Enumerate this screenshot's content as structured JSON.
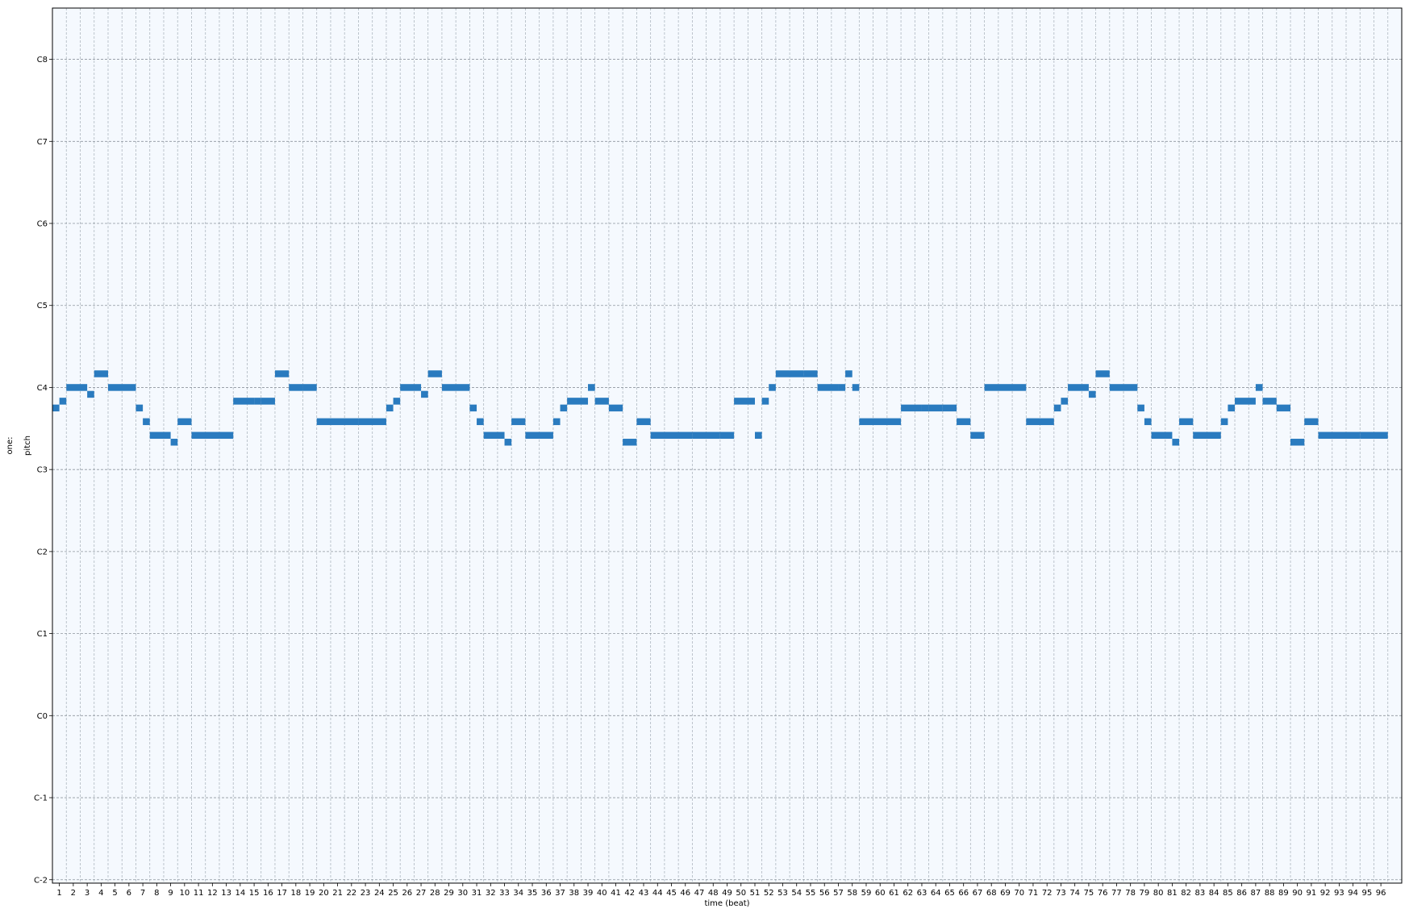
{
  "chart_data": {
    "type": "pianoroll",
    "title": "",
    "xlabel": "time (beat)",
    "ylabel": "pitch",
    "track_label": "one:",
    "xlim": [
      0.5,
      97.5
    ],
    "ylim": [
      -0.5,
      127.5
    ],
    "beat_ticks": [
      1,
      2,
      3,
      4,
      5,
      6,
      7,
      8,
      9,
      10,
      11,
      12,
      13,
      14,
      15,
      16,
      17,
      18,
      19,
      20,
      21,
      22,
      23,
      24,
      25,
      26,
      27,
      28,
      29,
      30,
      31,
      32,
      33,
      34,
      35,
      36,
      37,
      38,
      39,
      40,
      41,
      42,
      43,
      44,
      45,
      46,
      47,
      48,
      49,
      50,
      51,
      52,
      53,
      54,
      55,
      56,
      57,
      58,
      59,
      60,
      61,
      62,
      63,
      64,
      65,
      66,
      67,
      68,
      69,
      70,
      71,
      72,
      73,
      74,
      75,
      76,
      77,
      78,
      79,
      80,
      81,
      82,
      83,
      84,
      85,
      86,
      87,
      88,
      89,
      90,
      91,
      92,
      93,
      94,
      95,
      96
    ],
    "pitch_ticks": [
      {
        "label": "C-2",
        "pitch": 0
      },
      {
        "label": "C-1",
        "pitch": 12
      },
      {
        "label": "C0",
        "pitch": 24
      },
      {
        "label": "C1",
        "pitch": 36
      },
      {
        "label": "C2",
        "pitch": 48
      },
      {
        "label": "C3",
        "pitch": 60
      },
      {
        "label": "C4",
        "pitch": 72
      },
      {
        "label": "C5",
        "pitch": 84
      },
      {
        "label": "C6",
        "pitch": 96
      },
      {
        "label": "C7",
        "pitch": 108
      },
      {
        "label": "C8",
        "pitch": 120
      }
    ],
    "grid": true,
    "notes": [
      {
        "start": 0.5,
        "end": 1.0,
        "pitch": 69
      },
      {
        "start": 1.0,
        "end": 1.5,
        "pitch": 70
      },
      {
        "start": 1.5,
        "end": 3.0,
        "pitch": 72
      },
      {
        "start": 3.0,
        "end": 3.5,
        "pitch": 71
      },
      {
        "start": 3.5,
        "end": 4.5,
        "pitch": 74
      },
      {
        "start": 4.5,
        "end": 6.5,
        "pitch": 72
      },
      {
        "start": 6.5,
        "end": 7.0,
        "pitch": 69
      },
      {
        "start": 7.0,
        "end": 7.5,
        "pitch": 67
      },
      {
        "start": 7.5,
        "end": 9.0,
        "pitch": 65
      },
      {
        "start": 9.0,
        "end": 9.5,
        "pitch": 64
      },
      {
        "start": 9.5,
        "end": 10.5,
        "pitch": 67
      },
      {
        "start": 10.5,
        "end": 13.5,
        "pitch": 65
      },
      {
        "start": 13.5,
        "end": 15.0,
        "pitch": 70
      },
      {
        "start": 15.0,
        "end": 15.5,
        "pitch": 70
      },
      {
        "start": 15.5,
        "end": 16.5,
        "pitch": 70
      },
      {
        "start": 16.5,
        "end": 17.5,
        "pitch": 74
      },
      {
        "start": 17.5,
        "end": 18.5,
        "pitch": 72
      },
      {
        "start": 18.5,
        "end": 19.5,
        "pitch": 72
      },
      {
        "start": 19.5,
        "end": 22.5,
        "pitch": 67
      },
      {
        "start": 22.5,
        "end": 24.5,
        "pitch": 67
      },
      {
        "start": 24.5,
        "end": 25.0,
        "pitch": 69
      },
      {
        "start": 25.0,
        "end": 25.5,
        "pitch": 70
      },
      {
        "start": 25.5,
        "end": 27.0,
        "pitch": 72
      },
      {
        "start": 27.0,
        "end": 27.5,
        "pitch": 71
      },
      {
        "start": 27.5,
        "end": 28.5,
        "pitch": 74
      },
      {
        "start": 28.5,
        "end": 30.5,
        "pitch": 72
      },
      {
        "start": 30.5,
        "end": 31.0,
        "pitch": 69
      },
      {
        "start": 31.0,
        "end": 31.5,
        "pitch": 67
      },
      {
        "start": 31.5,
        "end": 33.0,
        "pitch": 65
      },
      {
        "start": 33.0,
        "end": 33.5,
        "pitch": 64
      },
      {
        "start": 33.5,
        "end": 34.5,
        "pitch": 67
      },
      {
        "start": 34.5,
        "end": 36.5,
        "pitch": 65
      },
      {
        "start": 36.5,
        "end": 37.0,
        "pitch": 67
      },
      {
        "start": 37.0,
        "end": 37.5,
        "pitch": 69
      },
      {
        "start": 37.5,
        "end": 39.0,
        "pitch": 70
      },
      {
        "start": 39.0,
        "end": 39.5,
        "pitch": 72
      },
      {
        "start": 39.5,
        "end": 40.5,
        "pitch": 70
      },
      {
        "start": 40.5,
        "end": 41.5,
        "pitch": 69
      },
      {
        "start": 41.5,
        "end": 42.5,
        "pitch": 64
      },
      {
        "start": 42.5,
        "end": 43.5,
        "pitch": 67
      },
      {
        "start": 43.5,
        "end": 46.5,
        "pitch": 65
      },
      {
        "start": 46.5,
        "end": 48.5,
        "pitch": 65
      },
      {
        "start": 48.5,
        "end": 49.5,
        "pitch": 65
      },
      {
        "start": 49.5,
        "end": 51.0,
        "pitch": 70
      },
      {
        "start": 51.0,
        "end": 51.5,
        "pitch": 65
      },
      {
        "start": 51.5,
        "end": 52.0,
        "pitch": 70
      },
      {
        "start": 52.0,
        "end": 52.5,
        "pitch": 72
      },
      {
        "start": 52.5,
        "end": 54.5,
        "pitch": 74
      },
      {
        "start": 54.5,
        "end": 55.5,
        "pitch": 74
      },
      {
        "start": 55.5,
        "end": 57.0,
        "pitch": 72
      },
      {
        "start": 57.0,
        "end": 57.5,
        "pitch": 72
      },
      {
        "start": 57.5,
        "end": 58.0,
        "pitch": 74
      },
      {
        "start": 58.0,
        "end": 58.5,
        "pitch": 72
      },
      {
        "start": 58.5,
        "end": 61.5,
        "pitch": 67
      },
      {
        "start": 61.5,
        "end": 63.0,
        "pitch": 69
      },
      {
        "start": 63.0,
        "end": 63.5,
        "pitch": 69
      },
      {
        "start": 63.5,
        "end": 64.5,
        "pitch": 69
      },
      {
        "start": 64.5,
        "end": 65.5,
        "pitch": 69
      },
      {
        "start": 65.5,
        "end": 66.5,
        "pitch": 67
      },
      {
        "start": 66.5,
        "end": 67.5,
        "pitch": 65
      },
      {
        "start": 67.5,
        "end": 70.5,
        "pitch": 72
      },
      {
        "start": 70.5,
        "end": 72.5,
        "pitch": 67
      },
      {
        "start": 72.5,
        "end": 73.0,
        "pitch": 69
      },
      {
        "start": 73.0,
        "end": 73.5,
        "pitch": 70
      },
      {
        "start": 73.5,
        "end": 75.0,
        "pitch": 72
      },
      {
        "start": 75.0,
        "end": 75.5,
        "pitch": 71
      },
      {
        "start": 75.5,
        "end": 76.5,
        "pitch": 74
      },
      {
        "start": 76.5,
        "end": 78.5,
        "pitch": 72
      },
      {
        "start": 78.5,
        "end": 79.0,
        "pitch": 69
      },
      {
        "start": 79.0,
        "end": 79.5,
        "pitch": 67
      },
      {
        "start": 79.5,
        "end": 81.0,
        "pitch": 65
      },
      {
        "start": 81.0,
        "end": 81.5,
        "pitch": 64
      },
      {
        "start": 81.5,
        "end": 82.5,
        "pitch": 67
      },
      {
        "start": 82.5,
        "end": 84.5,
        "pitch": 65
      },
      {
        "start": 84.5,
        "end": 85.0,
        "pitch": 67
      },
      {
        "start": 85.0,
        "end": 85.5,
        "pitch": 69
      },
      {
        "start": 85.5,
        "end": 87.0,
        "pitch": 70
      },
      {
        "start": 87.0,
        "end": 87.5,
        "pitch": 72
      },
      {
        "start": 87.5,
        "end": 88.5,
        "pitch": 70
      },
      {
        "start": 88.5,
        "end": 89.5,
        "pitch": 69
      },
      {
        "start": 89.5,
        "end": 90.5,
        "pitch": 64
      },
      {
        "start": 90.5,
        "end": 91.5,
        "pitch": 67
      },
      {
        "start": 91.5,
        "end": 94.5,
        "pitch": 65
      },
      {
        "start": 94.5,
        "end": 96.5,
        "pitch": 65
      }
    ]
  },
  "colors": {
    "note": "#2a7bbf",
    "plot_background": "#f5f9fe",
    "beat_grid": "#aeb7c0",
    "octave_grid": "#8e969e",
    "frame": "#000000",
    "text": "#000000"
  }
}
